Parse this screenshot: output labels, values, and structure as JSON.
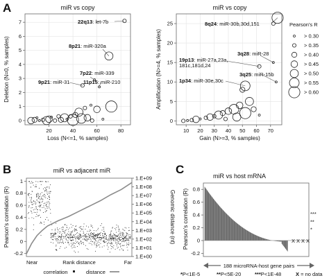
{
  "chart_data": [
    {
      "panel": "A",
      "type": "scatter",
      "title": "miR vs copy",
      "xlabel": "Loss (N<=1, % samples)",
      "ylabel": "Deletion (N=0, % samples)",
      "xticks": [
        20,
        40,
        60,
        80
      ],
      "yticks": [
        0,
        1,
        2,
        3,
        4,
        5,
        6,
        7
      ],
      "xlim": [
        0,
        88
      ],
      "ylim": [
        -0.3,
        7.6
      ],
      "grid": true,
      "annotations": [
        {
          "region": "22q13",
          "mir": "let-7b",
          "x": 83,
          "y": 7.1
        },
        {
          "region": "8p21",
          "mir": "miR-320a",
          "x": 70,
          "y": 4.6
        },
        {
          "region": "7p22",
          "mir": "miR-339",
          "x": 58,
          "y": 2.9
        },
        {
          "region": "9p21",
          "mir": "miR-31",
          "x": 48,
          "y": 2.5
        },
        {
          "region": "11p15",
          "mir": "miR-210",
          "x": 62,
          "y": 2.4
        }
      ],
      "points": [
        {
          "x": 83,
          "y": 7.1,
          "r": 0.35
        },
        {
          "x": 70,
          "y": 4.6,
          "r": 0.5
        },
        {
          "x": 58,
          "y": 2.9,
          "r": 0.3
        },
        {
          "x": 48,
          "y": 2.5,
          "r": 0.35
        },
        {
          "x": 62,
          "y": 2.4,
          "r": 0.3
        },
        {
          "x": 72,
          "y": 1.0,
          "r": 0.6
        },
        {
          "x": 60,
          "y": 0.8,
          "r": 0.45
        },
        {
          "x": 55,
          "y": 1.1,
          "r": 0.3
        },
        {
          "x": 50,
          "y": 0.9,
          "r": 0.35
        },
        {
          "x": 45,
          "y": 0.6,
          "r": 0.5
        },
        {
          "x": 42,
          "y": 0.4,
          "r": 0.4
        },
        {
          "x": 38,
          "y": 0.3,
          "r": 0.35
        },
        {
          "x": 47,
          "y": 0.15,
          "r": 0.55
        },
        {
          "x": 52,
          "y": 0.2,
          "r": 0.45
        },
        {
          "x": 35,
          "y": 0.1,
          "r": 0.3
        },
        {
          "x": 30,
          "y": 0.05,
          "r": 0.4
        },
        {
          "x": 25,
          "y": 0.0,
          "r": 0.35
        },
        {
          "x": 20,
          "y": 0.1,
          "r": 0.45
        },
        {
          "x": 18,
          "y": 0.0,
          "r": 0.5
        },
        {
          "x": 15,
          "y": 0.05,
          "r": 0.35
        },
        {
          "x": 12,
          "y": 0.0,
          "r": 0.3
        },
        {
          "x": 8,
          "y": 0.05,
          "r": 0.4
        },
        {
          "x": 5,
          "y": 0.0,
          "r": 0.45
        },
        {
          "x": 22,
          "y": 0.25,
          "r": 0.3
        },
        {
          "x": 28,
          "y": 0.3,
          "r": 0.35
        },
        {
          "x": 33,
          "y": 0.2,
          "r": 0.5
        },
        {
          "x": 40,
          "y": 0.05,
          "r": 0.6
        },
        {
          "x": 56,
          "y": 0.0,
          "r": 0.35
        },
        {
          "x": 65,
          "y": 0.1,
          "r": 0.3
        },
        {
          "x": 10,
          "y": 0.2,
          "r": 0.3
        }
      ]
    },
    {
      "panel": "A",
      "type": "scatter",
      "title": "miR vs copy",
      "xlabel": "Gain (N>=3, % samples)",
      "ylabel": "Amplification (N>=4, % samples)",
      "xticks": [
        10,
        20,
        30,
        40,
        50,
        60,
        70
      ],
      "yticks": [
        0,
        5,
        10,
        15,
        20,
        25
      ],
      "xlim": [
        3,
        78
      ],
      "ylim": [
        -1,
        27.5
      ],
      "grid": true,
      "annotations": [
        {
          "region": "8q24",
          "mir": "miR-30b,30d,151",
          "x": 75,
          "y": 26.5
        },
        {
          "region": "19p13",
          "mir": "miR-27a,23a,\n181c,181d,24",
          "x": 62,
          "y": 14
        },
        {
          "region": "1p34",
          "mir": "miR-30e,30c",
          "x": 52,
          "y": 9
        },
        {
          "region": "3q28",
          "mir": "miR-28",
          "x": 72,
          "y": 15
        },
        {
          "region": "3q25",
          "mir": "miR-15b",
          "x": 74,
          "y": 10
        }
      ],
      "points": [
        {
          "x": 75,
          "y": 26.5,
          "r": 0.6
        },
        {
          "x": 72,
          "y": 25,
          "r": 0.35
        },
        {
          "x": 62,
          "y": 14,
          "r": 0.35
        },
        {
          "x": 72,
          "y": 15,
          "r": 0.3
        },
        {
          "x": 74,
          "y": 10,
          "r": 0.3
        },
        {
          "x": 52,
          "y": 9,
          "r": 0.55
        },
        {
          "x": 50,
          "y": 8,
          "r": 0.4
        },
        {
          "x": 55,
          "y": 5,
          "r": 0.5
        },
        {
          "x": 48,
          "y": 4,
          "r": 0.45
        },
        {
          "x": 44,
          "y": 3,
          "r": 0.55
        },
        {
          "x": 40,
          "y": 2.5,
          "r": 0.45
        },
        {
          "x": 36,
          "y": 2,
          "r": 0.4
        },
        {
          "x": 33,
          "y": 1.5,
          "r": 0.5
        },
        {
          "x": 30,
          "y": 1.2,
          "r": 0.35
        },
        {
          "x": 27,
          "y": 1.0,
          "r": 0.45
        },
        {
          "x": 24,
          "y": 0.8,
          "r": 0.35
        },
        {
          "x": 20,
          "y": 0.5,
          "r": 0.3
        },
        {
          "x": 17,
          "y": 0.4,
          "r": 0.45
        },
        {
          "x": 14,
          "y": 0.2,
          "r": 0.35
        },
        {
          "x": 11,
          "y": 0.1,
          "r": 0.3
        },
        {
          "x": 8,
          "y": 0.0,
          "r": 0.35
        },
        {
          "x": 58,
          "y": 3,
          "r": 0.4
        },
        {
          "x": 62,
          "y": 1.5,
          "r": 0.3
        },
        {
          "x": 46,
          "y": 1,
          "r": 0.5
        },
        {
          "x": 38,
          "y": 0.5,
          "r": 0.35
        },
        {
          "x": 52,
          "y": 2,
          "r": 0.6
        }
      ],
      "legend": {
        "title": "Pearson's R",
        "entries": [
          "> 0.30",
          "> 0.35",
          "> 0.40",
          "> 0.45",
          "> 0.50",
          "> 0.55",
          "> 0.60"
        ],
        "sizes": [
          0.3,
          0.35,
          0.4,
          0.45,
          0.5,
          0.55,
          0.6
        ]
      }
    },
    {
      "panel": "B",
      "type": "scatter",
      "title": "miR vs adjacent miR",
      "xlabel": "Rank distance",
      "x_endpoints": [
        "Near",
        "Far"
      ],
      "ylabel": "Pearson's correlation (R)",
      "ylabel_right": "Genomic distance (nt)",
      "yticks": [
        -0.2,
        0,
        0.2,
        0.4,
        0.6,
        0.8,
        1
      ],
      "ylim": [
        -0.25,
        1.05
      ],
      "yticks_right": [
        "1.E+00",
        "1.E+01",
        "1.E+02",
        "1.E+03",
        "1.E+04",
        "1.E+05",
        "1.E+06",
        "1.E+07",
        "1.E+08",
        "1.E+09"
      ],
      "ylim_right_log10": [
        0,
        9
      ],
      "legend": {
        "entries": [
          "correlation",
          "distance"
        ],
        "placement": "bottom"
      },
      "distance_curve_log10": [
        {
          "x": 0.0,
          "y": 0.3
        },
        {
          "x": 0.05,
          "y": 1.5
        },
        {
          "x": 0.1,
          "y": 2.4
        },
        {
          "x": 0.15,
          "y": 3.0
        },
        {
          "x": 0.2,
          "y": 3.5
        },
        {
          "x": 0.3,
          "y": 4.1
        },
        {
          "x": 0.4,
          "y": 4.6
        },
        {
          "x": 0.5,
          "y": 5.2
        },
        {
          "x": 0.6,
          "y": 5.8
        },
        {
          "x": 0.7,
          "y": 6.4
        },
        {
          "x": 0.8,
          "y": 7.1
        },
        {
          "x": 0.9,
          "y": 7.7
        },
        {
          "x": 0.95,
          "y": 8.1
        },
        {
          "x": 1.0,
          "y": 8.5
        }
      ]
    },
    {
      "panel": "C",
      "type": "bar",
      "title": "miR vs host mRNA",
      "xlabel": "188 microRNA-host gene pairs",
      "ylabel": "Pearson's correlation (R)",
      "yticks": [
        -0.2,
        0,
        0.2,
        0.4,
        0.6,
        0.8
      ],
      "ylim": [
        -0.25,
        0.9
      ],
      "significance_labels": [
        {
          "symbol": "***",
          "y": 0.42
        },
        {
          "symbol": "**",
          "y": 0.3
        },
        {
          "symbol": "*",
          "y": 0.18
        }
      ],
      "no_data_marks": [
        "X",
        "X",
        "X",
        "X"
      ],
      "footnote": [
        {
          "symbol": "*",
          "text": "P<1E-5"
        },
        {
          "symbol": "**",
          "text": "P<5E-20"
        },
        {
          "symbol": "***",
          "text": "P<1E-48"
        },
        {
          "symbol": "X",
          "text": "= no data"
        }
      ],
      "n_bars": 188
    }
  ],
  "panels": {
    "a": "A",
    "b": "B",
    "c": "C"
  },
  "colors": {
    "distance_line": "#8c8c8c",
    "points": "#222222"
  }
}
